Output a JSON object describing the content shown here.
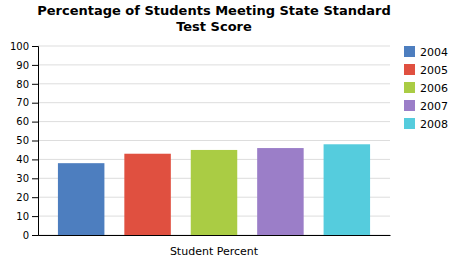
{
  "chart_data": {
    "type": "bar",
    "title": "Percentage of Students Meeting State Standard\nTest Score",
    "xlabel": "Student Percent",
    "categories": [
      "2004",
      "2005",
      "2006",
      "2007",
      "2008"
    ],
    "values": [
      38,
      43,
      45,
      46,
      48
    ],
    "colors": [
      "#4D7EBF",
      "#E05040",
      "#AACC44",
      "#9B7EC8",
      "#55CCDD"
    ],
    "ylim": [
      0,
      100
    ],
    "yticks": [
      0,
      10,
      20,
      30,
      40,
      50,
      60,
      70,
      80,
      90,
      100
    ],
    "grid": true,
    "legend": "right",
    "tick_labels": "y"
  }
}
